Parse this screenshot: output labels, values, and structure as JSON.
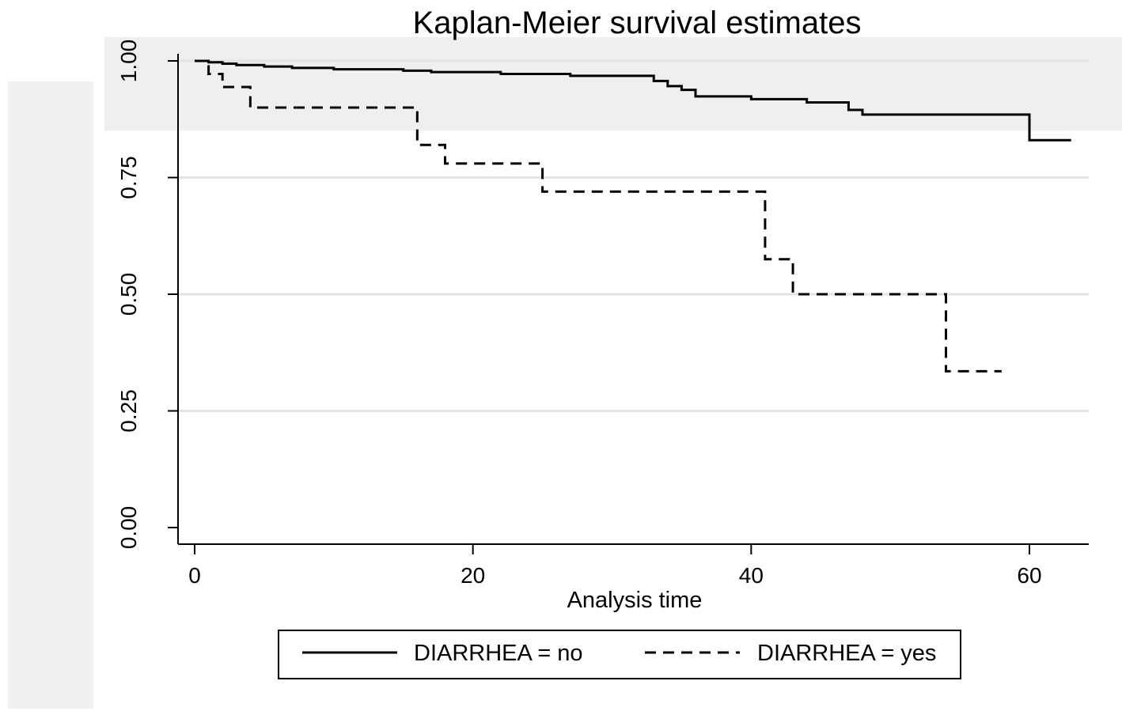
{
  "chart_data": {
    "type": "line",
    "subtype": "step",
    "title": "Kaplan-Meier survival estimates",
    "xlabel": "Analysis time",
    "ylabel": "",
    "xlim": [
      0,
      64
    ],
    "ylim": [
      0,
      1
    ],
    "xticks": [
      {
        "value": 0,
        "label": "0"
      },
      {
        "value": 20,
        "label": "20"
      },
      {
        "value": 40,
        "label": "40"
      },
      {
        "value": 60,
        "label": "60"
      }
    ],
    "yticks": [
      {
        "value": 0,
        "label": "0.00"
      },
      {
        "value": 0.25,
        "label": "0.25"
      },
      {
        "value": 0.5,
        "label": "0.50"
      },
      {
        "value": 0.75,
        "label": "0.75"
      },
      {
        "value": 1,
        "label": "1.00"
      }
    ],
    "grid": true,
    "legend_position": "bottom",
    "series": [
      {
        "name": "DIARRHEA = no",
        "style": "solid",
        "x": [
          0,
          1,
          2,
          3,
          5,
          7,
          10,
          15,
          17,
          22,
          27,
          33,
          34,
          35,
          36,
          40,
          44,
          47,
          48,
          60,
          63
        ],
        "y": [
          1.0,
          0.997,
          0.994,
          0.991,
          0.988,
          0.985,
          0.982,
          0.979,
          0.976,
          0.972,
          0.968,
          0.957,
          0.946,
          0.938,
          0.924,
          0.918,
          0.911,
          0.895,
          0.885,
          0.83,
          0.83
        ]
      },
      {
        "name": "DIARRHEA = yes",
        "style": "dashed",
        "x": [
          0,
          1,
          2,
          4,
          16,
          18,
          25,
          41,
          43,
          54,
          58
        ],
        "y": [
          1.0,
          0.972,
          0.944,
          0.9,
          0.82,
          0.78,
          0.72,
          0.575,
          0.5,
          0.335,
          0.335
        ]
      }
    ]
  }
}
